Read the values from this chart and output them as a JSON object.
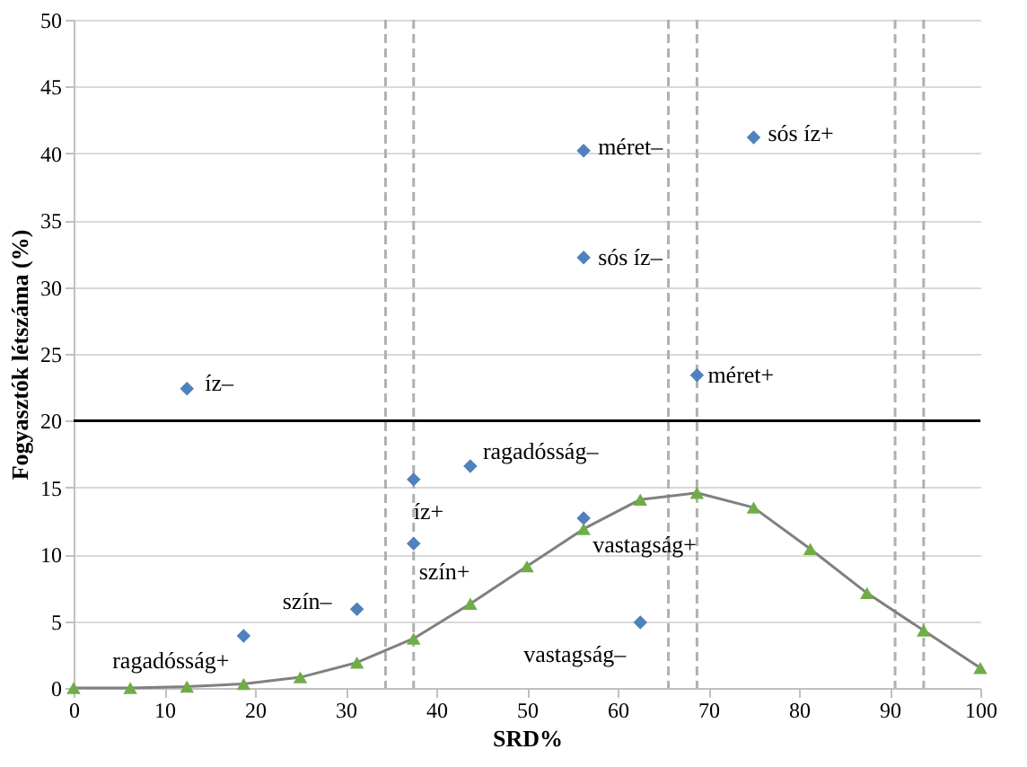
{
  "chart_data": {
    "type": "scatter",
    "xlabel": "SRD%",
    "ylabel": "Fogyasztók létszáma (%)",
    "xlim": [
      0,
      100
    ],
    "xticks": [
      0,
      10,
      20,
      30,
      40,
      50,
      60,
      70,
      80,
      90,
      100
    ],
    "ylim": [
      0,
      50
    ],
    "yticks": [
      0,
      5,
      10,
      15,
      20,
      25,
      30,
      35,
      40,
      45,
      50
    ],
    "grid": "y",
    "series": [
      {
        "type": "scatter",
        "marker": "diamond",
        "color": "#4f81bd",
        "x": [
          56.25,
          75,
          56.25,
          12.5,
          68.75,
          43.75,
          37.5,
          56.25,
          37.5,
          31.25,
          18.75,
          62.5
        ],
        "values": [
          40.2,
          41.2,
          32.2,
          22.4,
          23.4,
          16.6,
          15.6,
          12.7,
          10.8,
          5.9,
          3.9,
          4.9
        ]
      },
      {
        "type": "line",
        "marker": "triangle",
        "color": "#70ad47",
        "x": [
          0,
          6.25,
          12.5,
          18.75,
          25,
          31.25,
          37.5,
          43.75,
          50,
          56.25,
          62.5,
          68.75,
          75,
          81.25,
          87.5,
          93.75,
          100
        ],
        "values": [
          0,
          0,
          0.1,
          0.3,
          0.8,
          1.9,
          3.7,
          6.3,
          9.1,
          11.9,
          14.1,
          14.6,
          13.5,
          10.4,
          7.1,
          4.3,
          1.5
        ]
      }
    ],
    "ref_lines": [
      {
        "axis": "y",
        "value": 20,
        "color": "#000000",
        "line_style": "solid"
      },
      {
        "axis": "x",
        "value": 34.4,
        "color": "#b0b0b0",
        "line_style": "dashed"
      },
      {
        "axis": "x",
        "value": 37.5,
        "color": "#b0b0b0",
        "line_style": "dashed"
      },
      {
        "axis": "x",
        "value": 65.6,
        "color": "#b0b0b0",
        "line_style": "dashed"
      },
      {
        "axis": "x",
        "value": 68.75,
        "color": "#b0b0b0",
        "line_style": "dashed"
      },
      {
        "axis": "x",
        "value": 90.6,
        "color": "#b0b0b0",
        "line_style": "dashed"
      },
      {
        "axis": "x",
        "value": 93.75,
        "color": "#b0b0b0",
        "line_style": "dashed"
      }
    ],
    "annotations": [
      {
        "text": "méret–",
        "x": 56.25,
        "y": 40.2
      },
      {
        "text": "sós íz+",
        "x": 75,
        "y": 41.2
      },
      {
        "text": "sós íz–",
        "x": 56.25,
        "y": 32.2
      },
      {
        "text": "íz–",
        "x": 12.5,
        "y": 22.4
      },
      {
        "text": "méret+",
        "x": 68.75,
        "y": 23.4
      },
      {
        "text": "ragadósság–",
        "x": 43.75,
        "y": 16.6
      },
      {
        "text": "íz+",
        "x": 37.5,
        "y": 15.6
      },
      {
        "text": "vastagság+",
        "x": 56.25,
        "y": 12.7
      },
      {
        "text": "szín+",
        "x": 37.5,
        "y": 10.8
      },
      {
        "text": "szín–",
        "x": 31.25,
        "y": 5.9
      },
      {
        "text": "ragadósság+",
        "x": 18.75,
        "y": 3.9
      },
      {
        "text": "vastagság–",
        "x": 62.5,
        "y": 4.9
      }
    ]
  }
}
